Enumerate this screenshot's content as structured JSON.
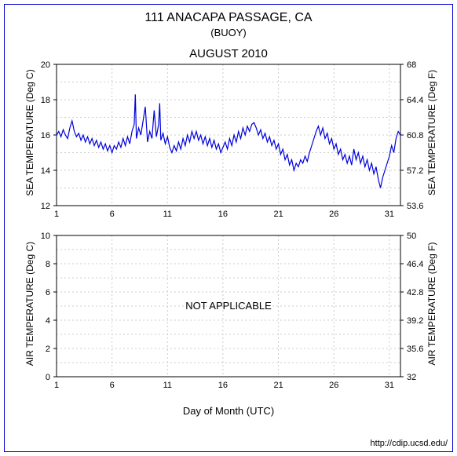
{
  "border_color": "#0000cc",
  "background_color": "#ffffff",
  "header": {
    "title": "111 ANACAPA PASSAGE, CA",
    "subtitle": "(BUOY)"
  },
  "source_url": "http://cdip.ucsd.edu/",
  "xaxis_label": "Day of Month (UTC)",
  "period_title": "AUGUST 2010",
  "xaxis": {
    "min": 1,
    "max": 32,
    "ticks": [
      1,
      6,
      11,
      16,
      21,
      26,
      31
    ]
  },
  "sea_chart": {
    "type": "line",
    "title_fontsize": 15,
    "y_left": {
      "label": "SEA TEMPERATURE (Deg C)",
      "min": 12,
      "max": 20,
      "ticks": [
        12,
        14,
        16,
        18,
        20
      ]
    },
    "y_right": {
      "label": "SEA TEMPERATURE (Deg F)",
      "min": 53.6,
      "max": 68,
      "ticks": [
        53.6,
        57.2,
        60.8,
        64.4,
        68
      ]
    },
    "grid_color": "#cccccc",
    "line_color": "#0000dd",
    "series": [
      [
        1.0,
        16.0
      ],
      [
        1.2,
        16.2
      ],
      [
        1.4,
        15.9
      ],
      [
        1.6,
        16.3
      ],
      [
        1.8,
        16.0
      ],
      [
        2.0,
        15.8
      ],
      [
        2.2,
        16.4
      ],
      [
        2.4,
        16.8
      ],
      [
        2.6,
        16.2
      ],
      [
        2.8,
        15.9
      ],
      [
        3.0,
        16.1
      ],
      [
        3.2,
        15.7
      ],
      [
        3.4,
        16.0
      ],
      [
        3.6,
        15.6
      ],
      [
        3.8,
        15.9
      ],
      [
        4.0,
        15.5
      ],
      [
        4.2,
        15.8
      ],
      [
        4.4,
        15.4
      ],
      [
        4.6,
        15.7
      ],
      [
        4.8,
        15.3
      ],
      [
        5.0,
        15.6
      ],
      [
        5.2,
        15.2
      ],
      [
        5.4,
        15.5
      ],
      [
        5.6,
        15.1
      ],
      [
        5.8,
        15.4
      ],
      [
        6.0,
        15.0
      ],
      [
        6.2,
        15.4
      ],
      [
        6.4,
        15.2
      ],
      [
        6.6,
        15.6
      ],
      [
        6.8,
        15.3
      ],
      [
        7.0,
        15.8
      ],
      [
        7.2,
        15.4
      ],
      [
        7.4,
        15.9
      ],
      [
        7.6,
        15.5
      ],
      [
        7.8,
        16.2
      ],
      [
        8.0,
        16.6
      ],
      [
        8.1,
        18.3
      ],
      [
        8.2,
        15.8
      ],
      [
        8.4,
        16.4
      ],
      [
        8.6,
        16.0
      ],
      [
        8.8,
        16.8
      ],
      [
        9.0,
        17.6
      ],
      [
        9.2,
        15.6
      ],
      [
        9.4,
        16.2
      ],
      [
        9.6,
        15.8
      ],
      [
        9.8,
        17.4
      ],
      [
        10.0,
        15.9
      ],
      [
        10.2,
        16.6
      ],
      [
        10.3,
        17.8
      ],
      [
        10.4,
        15.7
      ],
      [
        10.6,
        16.1
      ],
      [
        10.8,
        15.5
      ],
      [
        11.0,
        15.9
      ],
      [
        11.2,
        15.3
      ],
      [
        11.4,
        15.0
      ],
      [
        11.6,
        15.4
      ],
      [
        11.8,
        15.1
      ],
      [
        12.0,
        15.6
      ],
      [
        12.2,
        15.2
      ],
      [
        12.4,
        15.8
      ],
      [
        12.6,
        15.4
      ],
      [
        12.8,
        16.0
      ],
      [
        13.0,
        15.6
      ],
      [
        13.2,
        16.2
      ],
      [
        13.4,
        15.8
      ],
      [
        13.6,
        16.2
      ],
      [
        13.8,
        15.7
      ],
      [
        14.0,
        16.0
      ],
      [
        14.2,
        15.5
      ],
      [
        14.4,
        15.9
      ],
      [
        14.6,
        15.4
      ],
      [
        14.8,
        15.8
      ],
      [
        15.0,
        15.3
      ],
      [
        15.2,
        15.7
      ],
      [
        15.4,
        15.2
      ],
      [
        15.6,
        15.5
      ],
      [
        15.8,
        15.0
      ],
      [
        16.0,
        15.3
      ],
      [
        16.2,
        15.6
      ],
      [
        16.4,
        15.2
      ],
      [
        16.6,
        15.8
      ],
      [
        16.8,
        15.4
      ],
      [
        17.0,
        16.0
      ],
      [
        17.2,
        15.6
      ],
      [
        17.4,
        16.2
      ],
      [
        17.6,
        15.8
      ],
      [
        17.8,
        16.4
      ],
      [
        18.0,
        16.0
      ],
      [
        18.2,
        16.5
      ],
      [
        18.4,
        16.2
      ],
      [
        18.6,
        16.6
      ],
      [
        18.8,
        16.7
      ],
      [
        19.0,
        16.4
      ],
      [
        19.2,
        16.0
      ],
      [
        19.4,
        16.3
      ],
      [
        19.6,
        15.8
      ],
      [
        19.8,
        16.1
      ],
      [
        20.0,
        15.6
      ],
      [
        20.2,
        15.9
      ],
      [
        20.4,
        15.4
      ],
      [
        20.6,
        15.7
      ],
      [
        20.8,
        15.2
      ],
      [
        21.0,
        15.5
      ],
      [
        21.2,
        14.9
      ],
      [
        21.4,
        15.2
      ],
      [
        21.6,
        14.6
      ],
      [
        21.8,
        14.9
      ],
      [
        22.0,
        14.3
      ],
      [
        22.2,
        14.6
      ],
      [
        22.4,
        14.0
      ],
      [
        22.6,
        14.4
      ],
      [
        22.8,
        14.2
      ],
      [
        23.0,
        14.6
      ],
      [
        23.2,
        14.4
      ],
      [
        23.4,
        14.8
      ],
      [
        23.6,
        14.5
      ],
      [
        23.8,
        15.0
      ],
      [
        24.0,
        15.4
      ],
      [
        24.2,
        15.8
      ],
      [
        24.4,
        16.2
      ],
      [
        24.6,
        16.5
      ],
      [
        24.8,
        16.0
      ],
      [
        25.0,
        16.4
      ],
      [
        25.2,
        15.8
      ],
      [
        25.4,
        16.1
      ],
      [
        25.6,
        15.5
      ],
      [
        25.8,
        15.8
      ],
      [
        26.0,
        15.2
      ],
      [
        26.2,
        15.5
      ],
      [
        26.4,
        14.9
      ],
      [
        26.6,
        15.2
      ],
      [
        26.8,
        14.6
      ],
      [
        27.0,
        14.9
      ],
      [
        27.2,
        14.4
      ],
      [
        27.4,
        14.8
      ],
      [
        27.6,
        14.3
      ],
      [
        27.8,
        15.2
      ],
      [
        28.0,
        14.6
      ],
      [
        28.2,
        15.0
      ],
      [
        28.4,
        14.4
      ],
      [
        28.6,
        14.8
      ],
      [
        28.8,
        14.2
      ],
      [
        29.0,
        14.6
      ],
      [
        29.2,
        14.0
      ],
      [
        29.4,
        14.4
      ],
      [
        29.6,
        13.8
      ],
      [
        29.8,
        14.2
      ],
      [
        30.0,
        13.5
      ],
      [
        30.2,
        13.0
      ],
      [
        30.4,
        13.6
      ],
      [
        30.6,
        14.0
      ],
      [
        30.8,
        14.4
      ],
      [
        31.0,
        14.8
      ],
      [
        31.2,
        15.4
      ],
      [
        31.4,
        15.0
      ],
      [
        31.6,
        15.8
      ],
      [
        31.8,
        16.2
      ],
      [
        32.0,
        16.0
      ]
    ]
  },
  "air_chart": {
    "type": "line",
    "y_left": {
      "label": "AIR TEMPERATURE (Deg C)",
      "min": 0,
      "max": 10,
      "ticks": [
        0,
        2,
        4,
        6,
        8,
        10
      ]
    },
    "y_right": {
      "label": "AIR TEMPERATURE (Deg F)",
      "min": 32,
      "max": 50,
      "ticks": [
        32,
        35.6,
        39.2,
        42.8,
        46.4,
        50
      ]
    },
    "grid_color": "#cccccc",
    "overlay_text": "NOT APPLICABLE"
  }
}
